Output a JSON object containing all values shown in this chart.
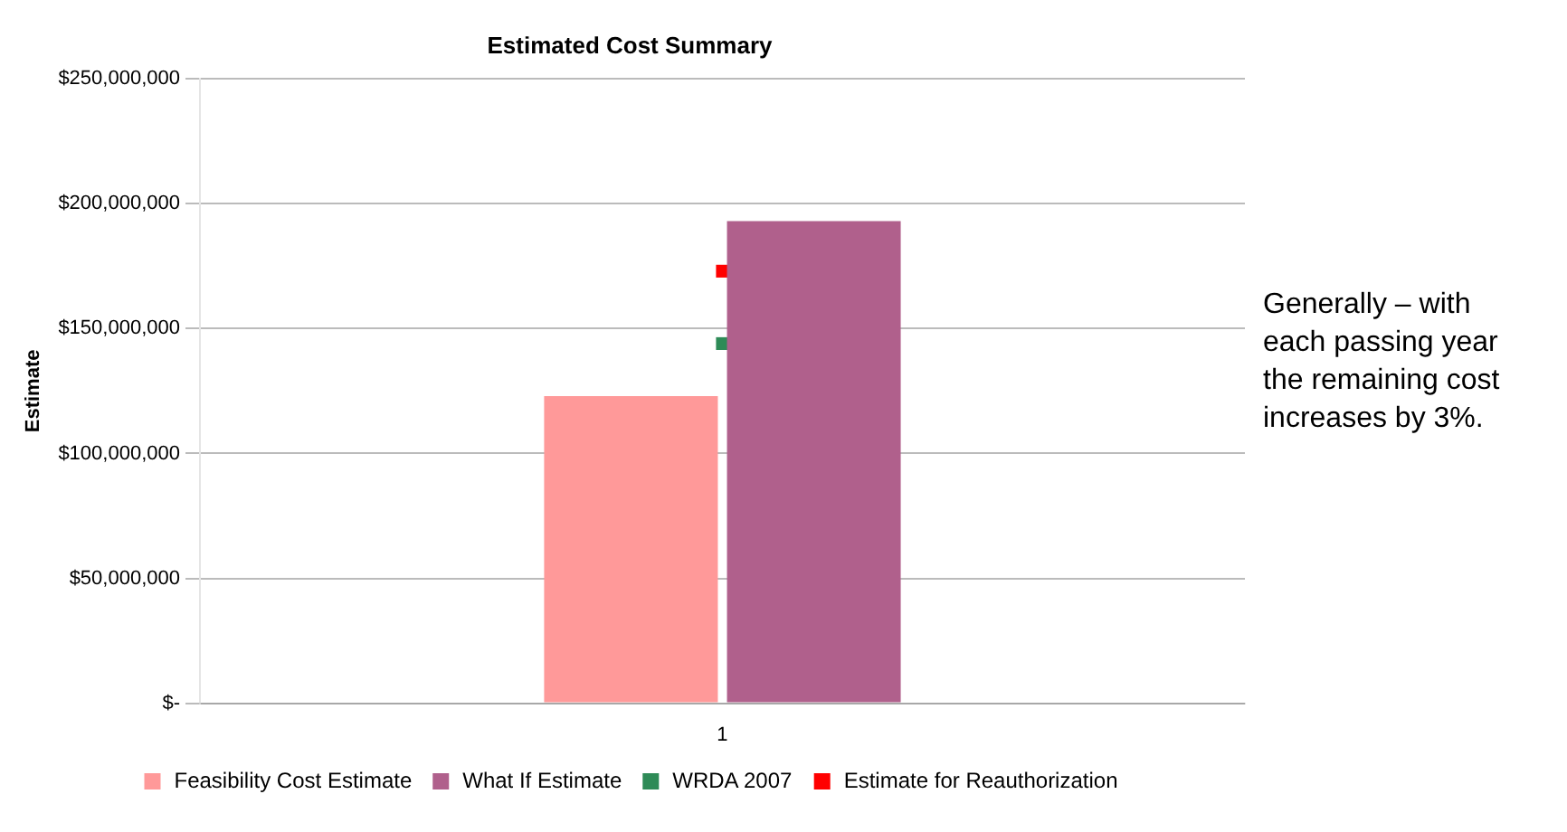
{
  "chart_data": {
    "type": "bar",
    "title": "Estimated Cost Summary",
    "ylabel": "Estimate",
    "categories": [
      "1"
    ],
    "series": [
      {
        "name": "Feasibility Cost Estimate",
        "color": "#ff9999",
        "values": [
          123000000
        ]
      },
      {
        "name": "What If Estimate",
        "color": "#b0608c",
        "values": [
          193000000
        ]
      },
      {
        "name": "WRDA 2007",
        "type": "scatter",
        "x": [
          "1"
        ],
        "color": "#2e8b57",
        "values": [
          144000000
        ]
      },
      {
        "name": "Estimate for Reauthorization",
        "type": "scatter",
        "x": [
          "1"
        ],
        "color": "#ff0000",
        "values": [
          173000000
        ]
      }
    ],
    "ylim": [
      0,
      250000000
    ],
    "yticks": [
      {
        "value": 0,
        "label": "$-"
      },
      {
        "value": 50000000,
        "label": "$50,000,000"
      },
      {
        "value": 100000000,
        "label": "$100,000,000"
      },
      {
        "value": 150000000,
        "label": "$150,000,000"
      },
      {
        "value": 200000000,
        "label": "$200,000,000"
      },
      {
        "value": 250000000,
        "label": "$250,000,000"
      }
    ],
    "grid": "y",
    "legend": "bottom",
    "annotations": [
      "Generally – with each passing year the remaining cost increases by 3%."
    ]
  }
}
